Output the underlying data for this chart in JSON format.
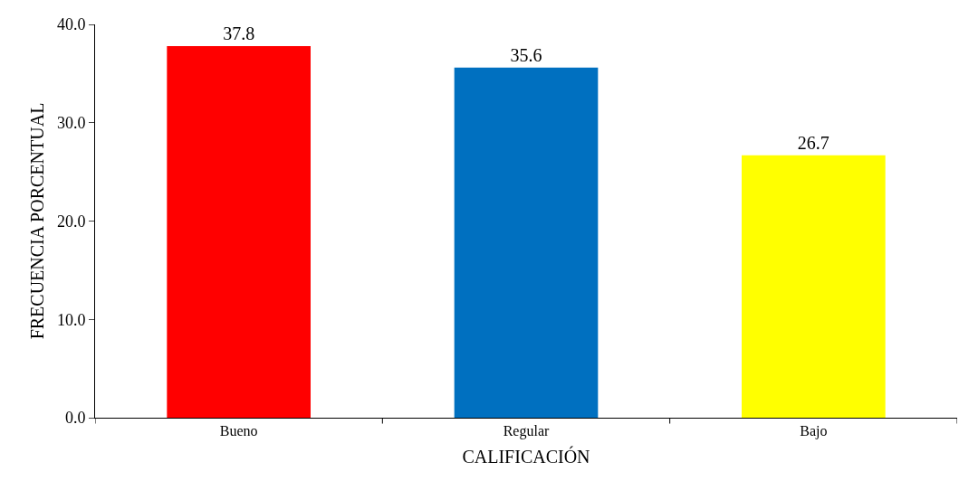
{
  "chart_data": {
    "type": "bar",
    "xlabel": "CALIFICACIÓN",
    "ylabel": "FRECUENCIA PORCENTUAL",
    "categories": [
      "Bueno",
      "Regular",
      "Bajo"
    ],
    "values": [
      37.8,
      35.6,
      26.7
    ],
    "colors": [
      "#ff0000",
      "#0070c0",
      "#ffff00"
    ],
    "ylim": [
      0,
      40
    ],
    "yticks": [
      {
        "value": 0,
        "label": "0.0"
      },
      {
        "value": 10,
        "label": "10.0"
      },
      {
        "value": 20,
        "label": "20.0"
      },
      {
        "value": 30,
        "label": "30.0"
      },
      {
        "value": 40,
        "label": "40.0"
      }
    ],
    "data_labels": true
  }
}
